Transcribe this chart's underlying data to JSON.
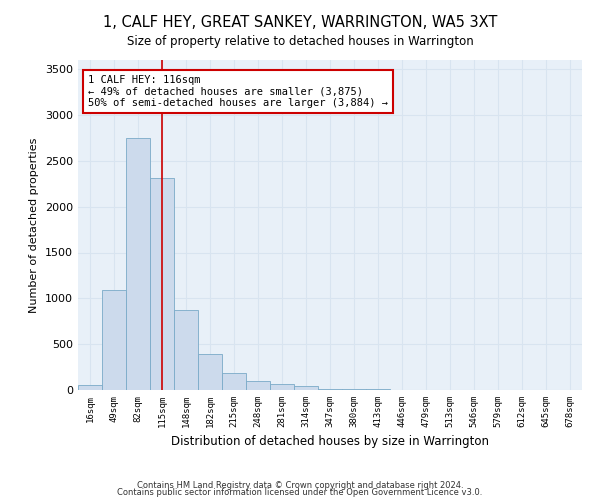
{
  "title": "1, CALF HEY, GREAT SANKEY, WARRINGTON, WA5 3XT",
  "subtitle": "Size of property relative to detached houses in Warrington",
  "xlabel": "Distribution of detached houses by size in Warrington",
  "ylabel": "Number of detached properties",
  "categories": [
    "16sqm",
    "49sqm",
    "82sqm",
    "115sqm",
    "148sqm",
    "182sqm",
    "215sqm",
    "248sqm",
    "281sqm",
    "314sqm",
    "347sqm",
    "380sqm",
    "413sqm",
    "446sqm",
    "479sqm",
    "513sqm",
    "546sqm",
    "579sqm",
    "612sqm",
    "645sqm",
    "678sqm"
  ],
  "bar_heights": [
    60,
    1090,
    2750,
    2310,
    870,
    390,
    185,
    100,
    65,
    40,
    15,
    10,
    7,
    5,
    3,
    2,
    1,
    1,
    0,
    0,
    0
  ],
  "bar_color": "#ccdaec",
  "bar_edge_color": "#7aaac8",
  "grid_color": "#d8e4f0",
  "background_color": "#e8f0f8",
  "vline_x": 3.0,
  "vline_color": "#cc0000",
  "annotation_text": "1 CALF HEY: 116sqm\n← 49% of detached houses are smaller (3,875)\n50% of semi-detached houses are larger (3,884) →",
  "annotation_box_color": "#ffffff",
  "annotation_box_edge": "#cc0000",
  "ylim": [
    0,
    3600
  ],
  "footnote1": "Contains HM Land Registry data © Crown copyright and database right 2024.",
  "footnote2": "Contains public sector information licensed under the Open Government Licence v3.0."
}
